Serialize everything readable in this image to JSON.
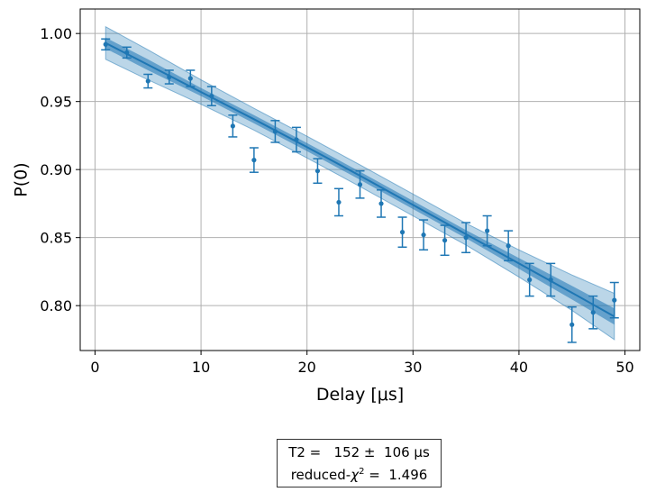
{
  "chart_data": {
    "type": "scatter",
    "xlabel": "Delay [μs]",
    "ylabel": "P(0)",
    "xlim": [
      -1.4,
      51.4
    ],
    "ylim": [
      0.767,
      1.018
    ],
    "xticks": [
      0,
      10,
      20,
      30,
      40,
      50
    ],
    "yticks": [
      0.8,
      0.85,
      0.9,
      0.95,
      1.0
    ],
    "xtick_labels": [
      "0",
      "10",
      "20",
      "30",
      "40",
      "50"
    ],
    "ytick_labels": [
      "0.80",
      "0.85",
      "0.90",
      "0.95",
      "1.00"
    ],
    "grid": true,
    "color": "#1f77b4",
    "points": [
      {
        "x": 1,
        "y": 0.992,
        "err": 0.004
      },
      {
        "x": 3,
        "y": 0.986,
        "err": 0.004
      },
      {
        "x": 5,
        "y": 0.965,
        "err": 0.005
      },
      {
        "x": 7,
        "y": 0.968,
        "err": 0.005
      },
      {
        "x": 9,
        "y": 0.967,
        "err": 0.006
      },
      {
        "x": 11,
        "y": 0.954,
        "err": 0.007
      },
      {
        "x": 13,
        "y": 0.932,
        "err": 0.008
      },
      {
        "x": 15,
        "y": 0.907,
        "err": 0.009
      },
      {
        "x": 17,
        "y": 0.928,
        "err": 0.008
      },
      {
        "x": 19,
        "y": 0.922,
        "err": 0.009
      },
      {
        "x": 21,
        "y": 0.899,
        "err": 0.009
      },
      {
        "x": 23,
        "y": 0.876,
        "err": 0.01
      },
      {
        "x": 25,
        "y": 0.889,
        "err": 0.01
      },
      {
        "x": 27,
        "y": 0.875,
        "err": 0.01
      },
      {
        "x": 29,
        "y": 0.854,
        "err": 0.011
      },
      {
        "x": 31,
        "y": 0.852,
        "err": 0.011
      },
      {
        "x": 33,
        "y": 0.848,
        "err": 0.011
      },
      {
        "x": 35,
        "y": 0.85,
        "err": 0.011
      },
      {
        "x": 37,
        "y": 0.855,
        "err": 0.011
      },
      {
        "x": 39,
        "y": 0.844,
        "err": 0.011
      },
      {
        "x": 41,
        "y": 0.819,
        "err": 0.012
      },
      {
        "x": 43,
        "y": 0.819,
        "err": 0.012
      },
      {
        "x": 45,
        "y": 0.786,
        "err": 0.013
      },
      {
        "x": 47,
        "y": 0.795,
        "err": 0.012
      },
      {
        "x": 49,
        "y": 0.804,
        "err": 0.013
      }
    ],
    "fit": {
      "x": [
        1,
        5,
        10,
        15,
        20,
        25,
        30,
        35,
        40,
        45,
        49
      ],
      "y": [
        0.993,
        0.977,
        0.957,
        0.937,
        0.9165,
        0.8955,
        0.874,
        0.8525,
        0.831,
        0.8095,
        0.792
      ],
      "band_inner": [
        0.004,
        0.004,
        0.003,
        0.003,
        0.003,
        0.003,
        0.003,
        0.003,
        0.004,
        0.005,
        0.006
      ],
      "band_outer": [
        0.012,
        0.011,
        0.009,
        0.008,
        0.008,
        0.008,
        0.008,
        0.008,
        0.01,
        0.013,
        0.017
      ]
    },
    "fit_report": {
      "line1": "T2 =   152 ±  106 μs",
      "line2_prefix": "reduced-",
      "line2_chi": "χ",
      "line2_sup": "2",
      "line2_suffix": " =  1.496"
    }
  }
}
